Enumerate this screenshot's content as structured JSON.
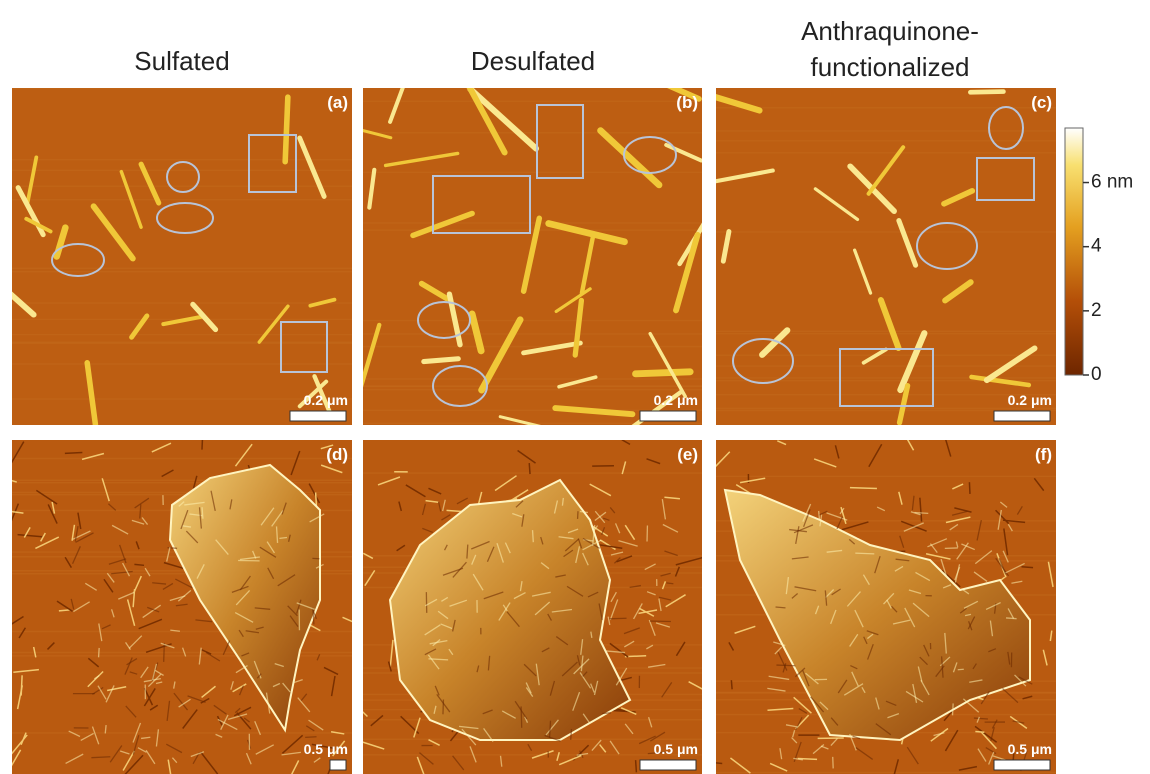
{
  "columns": [
    {
      "title": "Sulfated"
    },
    {
      "title": "Desulfated"
    },
    {
      "title_lines": [
        "Anthraquinone-",
        "functionalized"
      ]
    }
  ],
  "panels": [
    {
      "label": "(a)",
      "scale": "0.2 μm"
    },
    {
      "label": "(b)",
      "scale": "0.2 μm"
    },
    {
      "label": "(c)",
      "scale": "0.2 μm"
    },
    {
      "label": "(d)",
      "scale": "0.5 μm"
    },
    {
      "label": "(e)",
      "scale": "0.5 μm"
    },
    {
      "label": "(f)",
      "scale": "0.5 μm"
    }
  ],
  "colorbar": {
    "lim": [
      0,
      7.7
    ],
    "ticks": [
      0,
      2,
      4,
      {
        "value": 6,
        "label": "6 nm"
      }
    ]
  }
}
